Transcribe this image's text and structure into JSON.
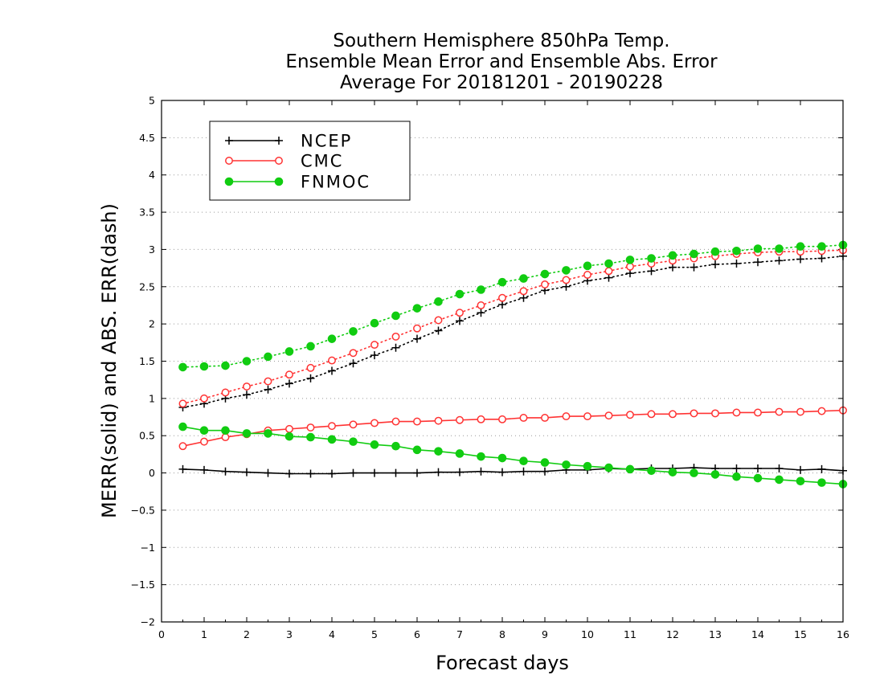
{
  "chart_data": {
    "type": "line",
    "title": [
      "Southern Hemisphere 850hPa Temp.",
      "Ensemble Mean Error and Ensemble Abs. Error",
      "Average For 20181201 - 20190228"
    ],
    "xlabel": "Forecast days",
    "ylabel": "MERR(solid) and ABS. ERR(dash)",
    "xlim": [
      0,
      16
    ],
    "ylim": [
      -2,
      5
    ],
    "xticks": [
      "0",
      "1",
      "2",
      "3",
      "4",
      "5",
      "6",
      "7",
      "8",
      "9",
      "10",
      "11",
      "12",
      "13",
      "14",
      "15",
      "16"
    ],
    "yticks": [
      "−2",
      "−1.5",
      "−1",
      "−0.5",
      "0",
      "0.5",
      "1",
      "1.5",
      "2",
      "2.5",
      "3",
      "3.5",
      "4",
      "4.5",
      "5"
    ],
    "grid": "horizontal dotted",
    "legend_position": "top-left",
    "x": [
      0.5,
      1,
      1.5,
      2,
      2.5,
      3,
      3.5,
      4,
      4.5,
      5,
      5.5,
      6,
      6.5,
      7,
      7.5,
      8,
      8.5,
      9,
      9.5,
      10,
      10.5,
      11,
      11.5,
      12,
      12.5,
      13,
      13.5,
      14,
      14.5,
      15,
      15.5,
      16
    ],
    "series": [
      {
        "name": "NCEP",
        "color": "#000000",
        "marker": "plus",
        "merr": [
          0.05,
          0.04,
          0.02,
          0.01,
          0.0,
          -0.01,
          -0.01,
          -0.01,
          0.0,
          0.0,
          0.0,
          0.0,
          0.01,
          0.01,
          0.02,
          0.01,
          0.02,
          0.02,
          0.04,
          0.04,
          0.06,
          0.05,
          0.06,
          0.06,
          0.07,
          0.06,
          0.06,
          0.06,
          0.06,
          0.04,
          0.05,
          0.03
        ],
        "abs_err": [
          0.88,
          0.93,
          1.0,
          1.05,
          1.12,
          1.2,
          1.27,
          1.37,
          1.47,
          1.58,
          1.68,
          1.8,
          1.91,
          2.04,
          2.15,
          2.26,
          2.35,
          2.45,
          2.5,
          2.58,
          2.62,
          2.68,
          2.71,
          2.76,
          2.76,
          2.8,
          2.81,
          2.83,
          2.85,
          2.87,
          2.88,
          2.91
        ]
      },
      {
        "name": "CMC",
        "color": "#ff3333",
        "marker": "open-circle",
        "merr": [
          0.36,
          0.42,
          0.48,
          0.52,
          0.57,
          0.59,
          0.61,
          0.63,
          0.65,
          0.67,
          0.69,
          0.69,
          0.7,
          0.71,
          0.72,
          0.72,
          0.74,
          0.74,
          0.76,
          0.76,
          0.77,
          0.78,
          0.79,
          0.79,
          0.8,
          0.8,
          0.81,
          0.81,
          0.82,
          0.82,
          0.83,
          0.84
        ],
        "abs_err": [
          0.93,
          1.0,
          1.08,
          1.16,
          1.23,
          1.32,
          1.41,
          1.51,
          1.61,
          1.72,
          1.83,
          1.94,
          2.05,
          2.15,
          2.25,
          2.35,
          2.44,
          2.53,
          2.59,
          2.66,
          2.71,
          2.77,
          2.81,
          2.85,
          2.88,
          2.91,
          2.94,
          2.96,
          2.97,
          2.97,
          2.98,
          2.99
        ]
      },
      {
        "name": "FNMOC",
        "color": "#11cc11",
        "marker": "filled-circle",
        "merr": [
          0.62,
          0.57,
          0.57,
          0.53,
          0.53,
          0.49,
          0.48,
          0.45,
          0.42,
          0.38,
          0.36,
          0.31,
          0.29,
          0.26,
          0.22,
          0.2,
          0.16,
          0.14,
          0.11,
          0.09,
          0.07,
          0.05,
          0.03,
          0.01,
          0.0,
          -0.02,
          -0.05,
          -0.07,
          -0.09,
          -0.11,
          -0.13,
          -0.15
        ],
        "abs_err": [
          1.42,
          1.43,
          1.44,
          1.5,
          1.56,
          1.63,
          1.7,
          1.8,
          1.9,
          2.01,
          2.11,
          2.21,
          2.3,
          2.4,
          2.46,
          2.56,
          2.61,
          2.67,
          2.72,
          2.78,
          2.81,
          2.86,
          2.88,
          2.92,
          2.94,
          2.97,
          2.98,
          3.01,
          3.01,
          3.04,
          3.04,
          3.06
        ]
      }
    ]
  }
}
